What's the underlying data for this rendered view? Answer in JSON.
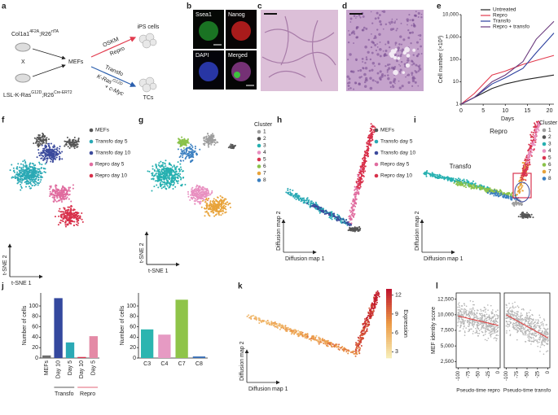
{
  "panel_labels": [
    "a",
    "b",
    "c",
    "d",
    "e",
    "f",
    "g",
    "h",
    "i",
    "j",
    "k",
    "l"
  ],
  "a": {
    "genotype_top": [
      "Col1a1",
      "4F2A",
      ";R26",
      "rtTA"
    ],
    "cross": "X",
    "genotype_bottom": [
      "LSL-K-Ras",
      "G12D",
      ";R26",
      "Cre-ERT2"
    ],
    "mefs": "MEFs",
    "oskm": "OSKM",
    "repro": "Repro",
    "transfo": "Transfo",
    "kras": [
      "K-Ras",
      "G12D"
    ],
    "cmyc": "+ c-Myc",
    "ips": "iPS cells",
    "tcs": "TCs"
  },
  "b": {
    "labels": [
      "Ssea1",
      "Nanog",
      "DAPI",
      "Merged"
    ]
  },
  "chart_data": [
    {
      "type": "line",
      "ylabel": "Cell number (×10³)",
      "xlabel": "Days",
      "x": [
        0,
        3,
        7,
        10,
        14,
        17,
        21
      ],
      "xlim": [
        0,
        21
      ],
      "xticks": [
        0,
        5,
        10,
        15,
        20
      ],
      "ylim": [
        1,
        10000
      ],
      "log_y": true,
      "yticks": [
        1,
        10,
        100,
        {
          "value": 1000,
          "label": "1,000"
        },
        {
          "value": 10000,
          "label": "10,000"
        }
      ],
      "series": [
        {
          "name": "Untreated",
          "color": "#222222",
          "values": [
            1,
            2,
            5,
            8,
            12,
            15,
            20
          ]
        },
        {
          "name": "Repro",
          "color": "#e23b4e",
          "values": [
            1,
            3,
            20,
            30,
            60,
            90,
            150
          ]
        },
        {
          "name": "Transfo",
          "color": "#2b3f9e",
          "values": [
            1,
            2,
            8,
            15,
            40,
            200,
            1500
          ]
        },
        {
          "name": "Repro + transfo",
          "color": "#6b3a7d",
          "values": [
            1,
            2,
            10,
            20,
            80,
            800,
            5000
          ]
        }
      ]
    },
    {
      "type": "bar",
      "ylabel": "Number of cells",
      "categories": [
        "MEFs",
        "Day 10",
        "Day 5",
        "Day 10",
        "Day 5"
      ],
      "values": [
        5,
        115,
        30,
        2,
        42
      ],
      "colors": [
        "#6e6e6e",
        "#34489e",
        "#2aa9b5",
        "#d8304a",
        "#e48aa6"
      ],
      "ylim": [
        0,
        125
      ],
      "yticks": [
        0,
        20,
        40,
        60,
        80,
        100
      ],
      "groups": [
        {
          "name": "Transfo",
          "color": "#222222"
        },
        {
          "name": "Repro",
          "color": "#d8304a"
        }
      ]
    },
    {
      "type": "bar",
      "ylabel": "Number of cells",
      "categories": [
        "C3",
        "C4",
        "C7",
        "C8"
      ],
      "values": [
        55,
        45,
        112,
        3
      ],
      "colors": [
        "#2bb5b0",
        "#e69ac3",
        "#8fc449",
        "#3a6fb5"
      ],
      "ylim": [
        0,
        125
      ],
      "yticks": [
        0,
        20,
        40,
        60,
        80,
        100
      ]
    },
    {
      "type": "scatter",
      "ylabel": "MEF identity score",
      "xlabel": "Pseudo-time repro",
      "xlim": [
        -105,
        5
      ],
      "xticks": [
        -100,
        -75,
        -50,
        -25,
        0
      ],
      "ylim": [
        1500,
        13500
      ],
      "yticks": [
        {
          "value": 2500,
          "label": "2,500"
        },
        {
          "value": 5000,
          "label": "5,000"
        },
        {
          "value": 7500,
          "label": "7,500"
        },
        {
          "value": 10000,
          "label": "10,000"
        },
        {
          "value": 12500,
          "label": "12,500"
        }
      ],
      "trend_x": [
        -100,
        0
      ],
      "trend_y": [
        9800,
        8300
      ],
      "color": "#b5b5b5",
      "trend_color": "#e23b3b"
    },
    {
      "type": "scatter",
      "xlabel": "Pseudo-time transfo",
      "xlim": [
        -105,
        5
      ],
      "xticks": [
        -100,
        -75,
        -50,
        -25,
        0
      ],
      "ylim": [
        1500,
        13500
      ],
      "trend_x": [
        -100,
        0
      ],
      "trend_y": [
        10000,
        6300
      ],
      "color": "#b5b5b5",
      "trend_color": "#e23b3b"
    }
  ],
  "embeddings": {
    "f": {
      "xlabel": "t-SNE 1",
      "ylabel": "t-SNE 2",
      "legend": [
        {
          "name": "MEFs",
          "color": "#555555"
        },
        {
          "name": "Transfo day 5",
          "color": "#2aa9b5"
        },
        {
          "name": "Transfo day 10",
          "color": "#3b4a9c"
        },
        {
          "name": "Repro day 5",
          "color": "#e06c9f"
        },
        {
          "name": "Repro day 10",
          "color": "#d8304a"
        }
      ]
    },
    "g": {
      "xlabel": "t-SNE 1",
      "ylabel": "t-SNE 2",
      "legend_title": "Cluster",
      "legend": [
        {
          "name": "1",
          "color": "#9e9e9e"
        },
        {
          "name": "2",
          "color": "#555555"
        },
        {
          "name": "3",
          "color": "#26b0b0"
        },
        {
          "name": "4",
          "color": "#e88fc0"
        },
        {
          "name": "5",
          "color": "#d9344f"
        },
        {
          "name": "6",
          "color": "#8ac24a"
        },
        {
          "name": "7",
          "color": "#e8a33a"
        },
        {
          "name": "8",
          "color": "#3a7fc0"
        }
      ]
    },
    "h": {
      "xlabel": "Diffusion map 1",
      "ylabel": "Diffusion map 2",
      "legend": [
        {
          "name": "MEFs",
          "color": "#555555"
        },
        {
          "name": "Transfo day 5",
          "color": "#2aa9b5"
        },
        {
          "name": "Transfo day 10",
          "color": "#3b4a9c"
        },
        {
          "name": "Repro day 5",
          "color": "#e06c9f"
        },
        {
          "name": "Repro day 10",
          "color": "#d8304a"
        }
      ]
    },
    "i": {
      "xlabel": "Diffusion map 1",
      "ylabel": "Diffusion map 2",
      "legend_title": "Cluster",
      "transfo": "Transfo",
      "repro": "Repro",
      "legend": [
        {
          "name": "1",
          "color": "#9e9e9e"
        },
        {
          "name": "2",
          "color": "#555555"
        },
        {
          "name": "3",
          "color": "#26b0b0"
        },
        {
          "name": "4",
          "color": "#e88fc0"
        },
        {
          "name": "5",
          "color": "#d9344f"
        },
        {
          "name": "6",
          "color": "#8ac24a"
        },
        {
          "name": "7",
          "color": "#e8a33a"
        },
        {
          "name": "8",
          "color": "#3a7fc0"
        }
      ]
    },
    "k": {
      "xlabel": "Diffusion map 1",
      "ylabel": "Diffusion map 2",
      "colorbar_label": "Expression",
      "clim": [
        2,
        13
      ],
      "cticks": [
        3,
        6,
        9,
        12
      ],
      "colormap": [
        "#f7ecb5",
        "#ec9a45",
        "#c0152e"
      ]
    }
  }
}
